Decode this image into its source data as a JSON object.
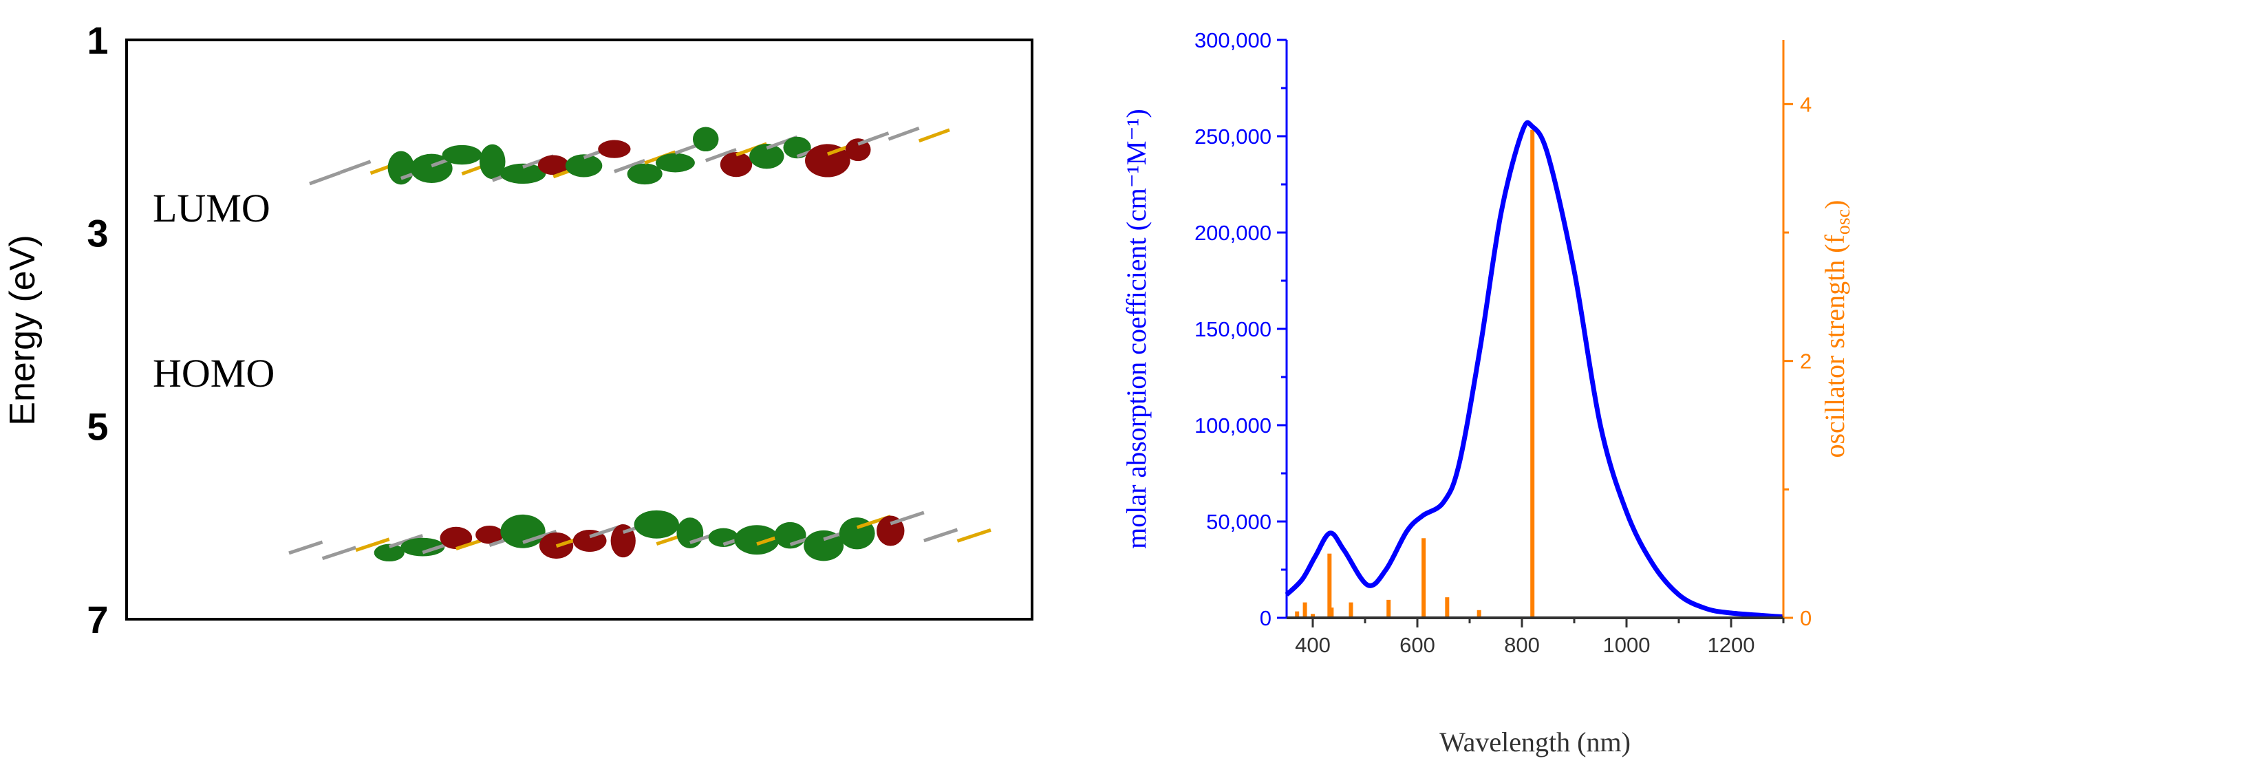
{
  "chart_data": [
    {
      "type": "diagram-energy-levels",
      "ylabel": "Energy (eV)",
      "yticks": [
        "1",
        "3",
        "5",
        "7"
      ],
      "ylim": [
        1,
        7
      ],
      "y_inverted": true,
      "levels": [
        {
          "label": "LUMO",
          "energy": 3
        },
        {
          "label": "HOMO",
          "energy": 5
        }
      ],
      "orbital_colors": {
        "positive": "#8b0a0a",
        "negative": "#1a7a1a"
      }
    },
    {
      "type": "line+bar",
      "xlabel": "Wavelength (nm)",
      "ylabel": "molar absorption coefficient (cm⁻¹M⁻¹)",
      "y2label": "oscillator strength (f",
      "y2label_sub": "osc",
      "y2label_end": ")",
      "xlim": [
        350,
        1300
      ],
      "ylim": [
        0,
        300000
      ],
      "y2lim": [
        0,
        4.5
      ],
      "xticks": [
        "400",
        "600",
        "800",
        "1000",
        "1200"
      ],
      "yticks": [
        "0",
        "50,000",
        "100,000",
        "150,000",
        "200,000",
        "250,000",
        "300,000"
      ],
      "y2ticks": [
        "0",
        "2",
        "4"
      ],
      "line_color": "#0000ff",
      "bar_color": "#ff8000",
      "absorption": {
        "x": [
          350,
          380,
          405,
          433,
          460,
          505,
          540,
          580,
          610,
          650,
          680,
          720,
          760,
          800,
          820,
          850,
          900,
          950,
          1000,
          1050,
          1100,
          1150,
          1200,
          1300
        ],
        "y": [
          12000,
          20000,
          32000,
          44000,
          35000,
          17000,
          25000,
          45000,
          53000,
          60000,
          80000,
          140000,
          210000,
          252000,
          255000,
          240000,
          180000,
          100000,
          55000,
          28000,
          12000,
          5000,
          2500,
          500
        ]
      },
      "oscillator": {
        "x": [
          370,
          385,
          400,
          432,
          436,
          473,
          545,
          612,
          657,
          718,
          820
        ],
        "y": [
          0.05,
          0.12,
          0.03,
          0.5,
          0.08,
          0.12,
          0.14,
          0.62,
          0.16,
          0.06,
          3.8
        ]
      }
    }
  ]
}
